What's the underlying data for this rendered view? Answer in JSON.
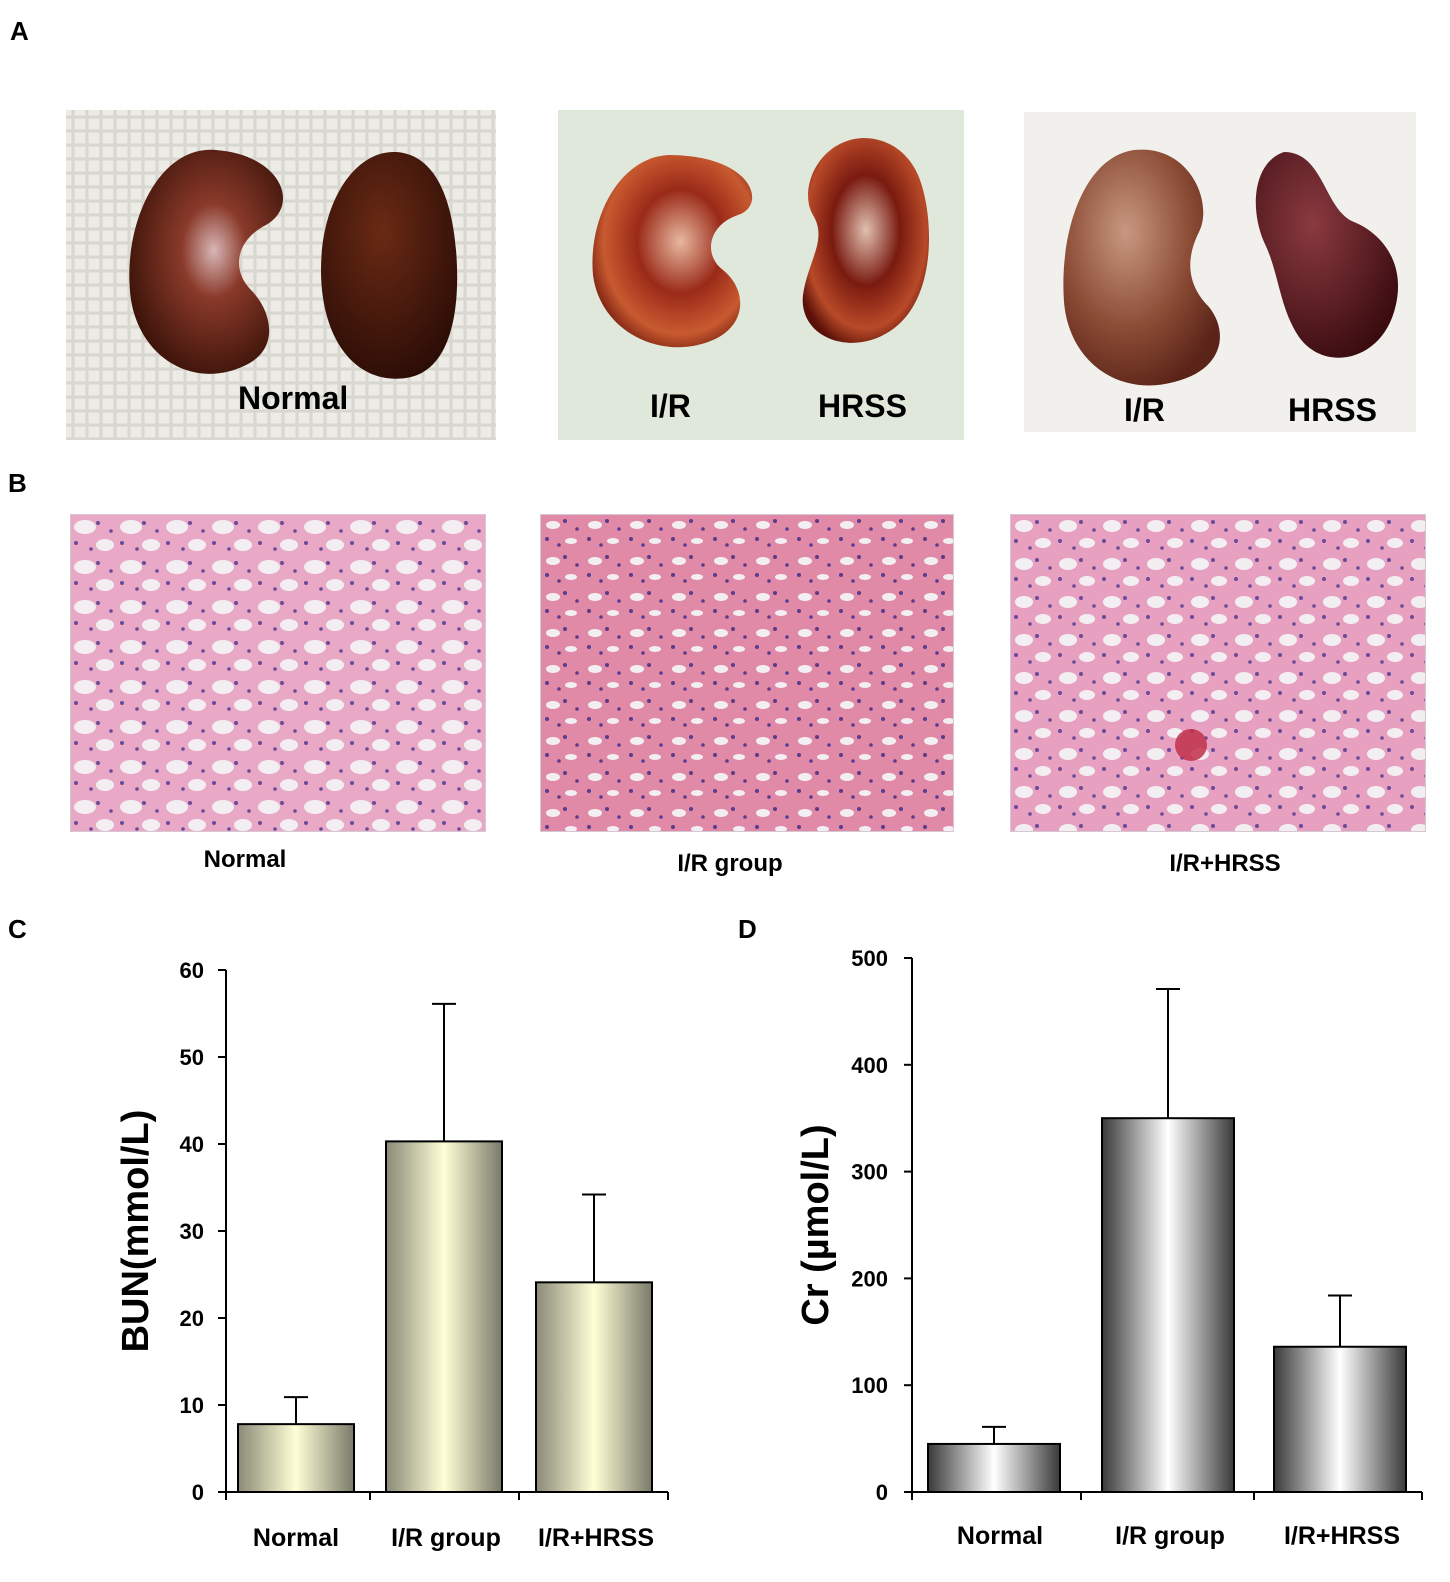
{
  "panels": {
    "a": {
      "letter": "A"
    },
    "b": {
      "letter": "B"
    },
    "c": {
      "letter": "C"
    },
    "d": {
      "letter": "D"
    }
  },
  "photos": [
    {
      "labels": [
        "Normal"
      ],
      "background": "#e8e6df",
      "left_color": "#4a1a10",
      "right_color": "#3a140c"
    },
    {
      "labels": [
        "I/R",
        "HRSS"
      ],
      "background": "#dfe8da",
      "left_color": "#8a2a18",
      "right_color": "#6a1c12"
    },
    {
      "labels": [
        "I/R",
        "HRSS"
      ],
      "background": "#f2f0ec",
      "left_color": "#7a3a2a",
      "right_color": "#4a1418"
    }
  ],
  "histology": [
    {
      "caption": "Normal"
    },
    {
      "caption": "I/R group"
    },
    {
      "caption": "I/R+HRSS"
    }
  ],
  "chart_data": [
    {
      "type": "bar",
      "panel": "C",
      "categories": [
        "Normal",
        "I/R group",
        "I/R+HRSS"
      ],
      "values": [
        7.8,
        40.3,
        24.1
      ],
      "errors": [
        3.1,
        15.8,
        10.1
      ],
      "ylabel": "BUN(mmol/L)",
      "ylim": [
        0,
        60
      ],
      "yticks": [
        0,
        10,
        20,
        30,
        40,
        50,
        60
      ],
      "bar_gradient": [
        "#8a8a78",
        "#ffffd6",
        "#7a7a6a"
      ]
    },
    {
      "type": "bar",
      "panel": "D",
      "categories": [
        "Normal",
        "I/R group",
        "I/R+HRSS"
      ],
      "values": [
        45,
        350,
        136
      ],
      "errors": [
        16,
        121,
        48
      ],
      "ylabel": "Cr (µmol/L)",
      "ylim": [
        0,
        500
      ],
      "yticks": [
        0,
        100,
        200,
        300,
        400,
        500
      ],
      "bar_gradient": [
        "#3a3a3a",
        "#ffffff",
        "#3a3a3a"
      ]
    }
  ]
}
